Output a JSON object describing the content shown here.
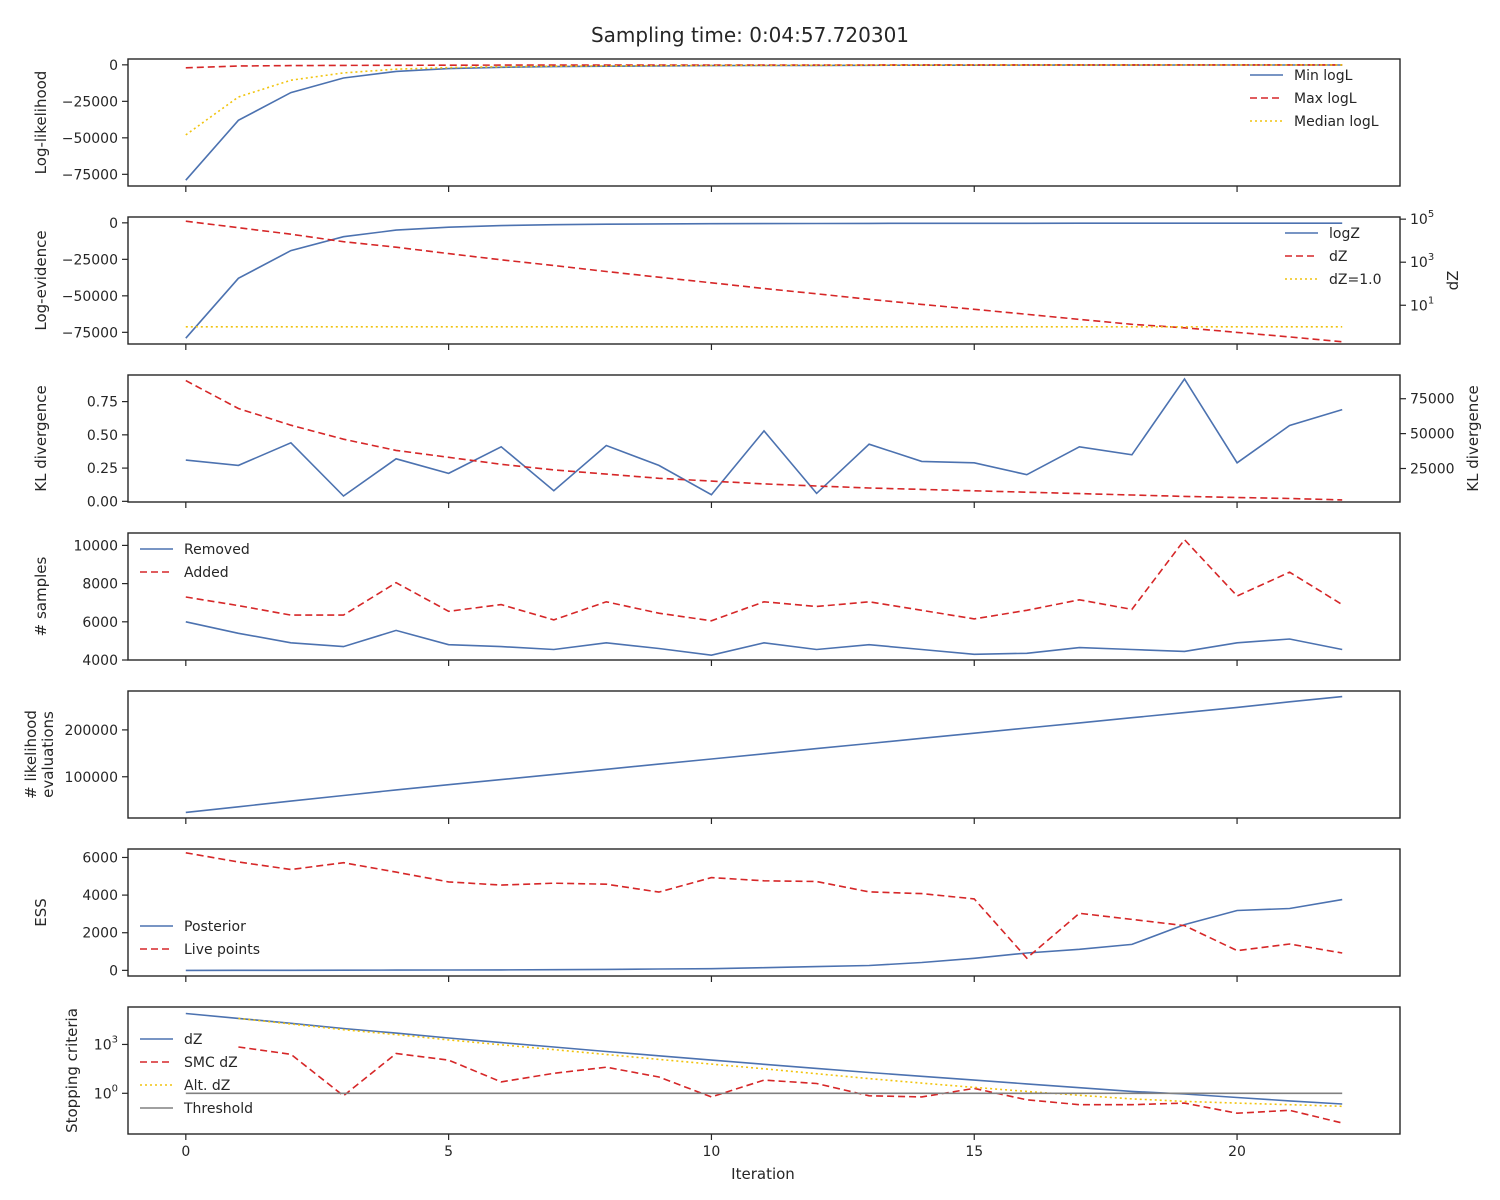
{
  "figure": {
    "title": "Sampling time: 0:04:57.720301",
    "xlabel": "Iteration"
  },
  "colors": {
    "blue": "#4c72b0",
    "red": "#d62728",
    "gold": "#f1c40f",
    "gray": "#808080",
    "axis": "#262626"
  },
  "chart_data": [
    {
      "type": "line",
      "ylabel": "Log-likelihood",
      "x": [
        0,
        1,
        2,
        3,
        4,
        5,
        6,
        7,
        8,
        9,
        10,
        11,
        12,
        13,
        14,
        15,
        16,
        17,
        18,
        19,
        20,
        21,
        22
      ],
      "series": [
        {
          "name": "Min logL",
          "style": "solid",
          "color": "blue",
          "values": [
            -79000,
            -38000,
            -19000,
            -9000,
            -4500,
            -2600,
            -1700,
            -1200,
            -900,
            -700,
            -550,
            -450,
            -380,
            -320,
            -280,
            -240,
            -210,
            -180,
            -160,
            -140,
            -120,
            -100,
            -80
          ]
        },
        {
          "name": "Max logL",
          "style": "dashed",
          "color": "red",
          "values": [
            -2000,
            -800,
            -500,
            -400,
            -300,
            -250,
            -200,
            -170,
            -150,
            -130,
            -110,
            -100,
            -90,
            -80,
            -70,
            -60,
            -55,
            -50,
            -45,
            -40,
            -35,
            -30,
            -25
          ]
        },
        {
          "name": "Median logL",
          "style": "dotted",
          "color": "gold",
          "values": [
            -48000,
            -22000,
            -10500,
            -5500,
            -3000,
            -1900,
            -1300,
            -950,
            -700,
            -550,
            -430,
            -360,
            -300,
            -260,
            -220,
            -190,
            -165,
            -145,
            -125,
            -110,
            -95,
            -80,
            -65
          ]
        }
      ],
      "yticks": [
        0,
        -25000,
        -50000,
        -75000
      ],
      "ylim": [
        -83000,
        4000
      ],
      "legend": "upper-right"
    },
    {
      "type": "line",
      "ylabel": "Log-evidence",
      "y2label": "dZ",
      "x": [
        0,
        1,
        2,
        3,
        4,
        5,
        6,
        7,
        8,
        9,
        10,
        11,
        12,
        13,
        14,
        15,
        16,
        17,
        18,
        19,
        20,
        21,
        22
      ],
      "series": [
        {
          "name": "logZ",
          "style": "solid",
          "color": "blue",
          "axis": "left",
          "values": [
            -79000,
            -38000,
            -19000,
            -9500,
            -5000,
            -3000,
            -1900,
            -1300,
            -950,
            -750,
            -600,
            -500,
            -430,
            -380,
            -340,
            -310,
            -285,
            -265,
            -250,
            -238,
            -228,
            -220,
            -214
          ]
        },
        {
          "name": "dZ",
          "style": "dashed",
          "color": "red",
          "axis": "right",
          "log": true,
          "values": [
            80000,
            40000,
            20000,
            9000,
            5000,
            2500,
            1300,
            700,
            370,
            200,
            110,
            60,
            34,
            19,
            11,
            6.5,
            3.8,
            2.2,
            1.3,
            0.9,
            0.55,
            0.34,
            0.2
          ]
        },
        {
          "name": "dZ=1.0",
          "style": "dotted",
          "color": "gold",
          "axis": "right",
          "log": true,
          "values": [
            1,
            1,
            1,
            1,
            1,
            1,
            1,
            1,
            1,
            1,
            1,
            1,
            1,
            1,
            1,
            1,
            1,
            1,
            1,
            1,
            1,
            1,
            1
          ]
        }
      ],
      "yticks": [
        0,
        -25000,
        -50000,
        -75000
      ],
      "ylim": [
        -83000,
        4000
      ],
      "y2ticks": [
        "10^5",
        "10^3",
        "10^1"
      ],
      "y2lim_log10": [
        -0.8,
        5.1
      ],
      "legend": "upper-right"
    },
    {
      "type": "line",
      "ylabel": "KL divergence",
      "y2label": "KL divergence",
      "x": [
        0,
        1,
        2,
        3,
        4,
        5,
        6,
        7,
        8,
        9,
        10,
        11,
        12,
        13,
        14,
        15,
        16,
        17,
        18,
        19,
        20,
        21,
        22
      ],
      "series": [
        {
          "name": "",
          "style": "solid",
          "color": "blue",
          "axis": "left",
          "values": [
            0.31,
            0.27,
            0.44,
            0.04,
            0.32,
            0.21,
            0.41,
            0.08,
            0.42,
            0.27,
            0.05,
            0.53,
            0.06,
            0.43,
            0.3,
            0.29,
            0.2,
            0.41,
            0.35,
            0.92,
            0.29,
            0.57,
            0.69
          ]
        },
        {
          "name": "",
          "style": "dashed",
          "color": "red",
          "axis": "right",
          "values": [
            88000,
            68000,
            56000,
            46000,
            38000,
            33000,
            28000,
            24000,
            21000,
            18000,
            16000,
            14000,
            12500,
            11000,
            10000,
            9000,
            8000,
            7000,
            6000,
            5000,
            4200,
            3500,
            2500
          ]
        }
      ],
      "yticks": [
        0.0,
        0.25,
        0.5,
        0.75
      ],
      "ylim": [
        -0.005,
        0.95
      ],
      "y2ticks": [
        25000,
        50000,
        75000
      ],
      "y2lim": [
        1000,
        92000
      ]
    },
    {
      "type": "line",
      "ylabel": "# samples",
      "x": [
        0,
        1,
        2,
        3,
        4,
        5,
        6,
        7,
        8,
        9,
        10,
        11,
        12,
        13,
        14,
        15,
        16,
        17,
        18,
        19,
        20,
        21,
        22
      ],
      "series": [
        {
          "name": "Removed",
          "style": "solid",
          "color": "blue",
          "values": [
            6000,
            5400,
            4900,
            4700,
            5550,
            4800,
            4700,
            4550,
            4900,
            4600,
            4250,
            4900,
            4550,
            4800,
            4550,
            4300,
            4350,
            4650,
            4550,
            4450,
            4900,
            5100,
            4550
          ]
        },
        {
          "name": "Added",
          "style": "dashed",
          "color": "red",
          "values": [
            7300,
            6850,
            6350,
            6350,
            8050,
            6550,
            6900,
            6100,
            7050,
            6450,
            6050,
            7050,
            6800,
            7050,
            6600,
            6150,
            6600,
            7150,
            6650,
            10300,
            7350,
            8600,
            6900
          ]
        }
      ],
      "yticks": [
        4000,
        6000,
        8000,
        10000
      ],
      "ylim": [
        4000,
        10650
      ],
      "legend": "upper-left"
    },
    {
      "type": "line",
      "ylabel": [
        "# likelihood",
        "evaluations"
      ],
      "x": [
        0,
        1,
        2,
        3,
        4,
        5,
        6,
        7,
        8,
        9,
        10,
        11,
        12,
        13,
        14,
        15,
        16,
        17,
        18,
        19,
        20,
        21,
        22
      ],
      "series": [
        {
          "name": "",
          "style": "solid",
          "color": "blue",
          "values": [
            24000,
            36000,
            48000,
            60000,
            72000,
            83000,
            94000,
            105000,
            116000,
            127000,
            138000,
            149000,
            160000,
            171000,
            182000,
            193000,
            204000,
            215000,
            226000,
            237000,
            248000,
            260000,
            271000
          ]
        }
      ],
      "yticks": [
        100000,
        200000
      ],
      "ylim": [
        12000,
        283000
      ]
    },
    {
      "type": "line",
      "ylabel": "ESS",
      "x": [
        0,
        1,
        2,
        3,
        4,
        5,
        6,
        7,
        8,
        9,
        10,
        11,
        12,
        13,
        14,
        15,
        16,
        17,
        18,
        19,
        20,
        21,
        22
      ],
      "series": [
        {
          "name": "Posterior",
          "style": "solid",
          "color": "blue",
          "values": [
            0,
            2,
            5,
            8,
            12,
            18,
            25,
            35,
            50,
            70,
            90,
            140,
            200,
            260,
            420,
            640,
            920,
            1120,
            1380,
            2430,
            3180,
            3290,
            3760
          ]
        },
        {
          "name": "Live points",
          "style": "dashed",
          "color": "red",
          "values": [
            6250,
            5760,
            5360,
            5720,
            5220,
            4700,
            4530,
            4630,
            4580,
            4160,
            4930,
            4760,
            4720,
            4170,
            4080,
            3800,
            650,
            3030,
            2710,
            2380,
            1050,
            1400,
            920
          ]
        }
      ],
      "yticks": [
        0,
        2000,
        4000,
        6000
      ],
      "ylim": [
        -300,
        6450
      ],
      "legend": "lower-left"
    },
    {
      "type": "line",
      "ylabel": "Stopping criteria",
      "x": [
        0,
        1,
        2,
        3,
        4,
        5,
        6,
        7,
        8,
        9,
        10,
        11,
        12,
        13,
        14,
        15,
        16,
        17,
        18,
        19,
        20,
        21,
        22
      ],
      "series": [
        {
          "name": "dZ",
          "style": "solid",
          "color": "blue",
          "log": true,
          "values": [
            80000,
            40000,
            20000,
            9500,
            5000,
            2500,
            1300,
            700,
            370,
            200,
            110,
            60,
            34,
            19,
            11,
            6.5,
            3.8,
            2.2,
            1.3,
            0.9,
            0.55,
            0.34,
            0.22
          ]
        },
        {
          "name": "SMC dZ",
          "style": "dashed",
          "color": "red",
          "log": true,
          "values": [
            null,
            700,
            250,
            0.7,
            280,
            110,
            5,
            17,
            40,
            10,
            0.6,
            6.5,
            4,
            0.7,
            0.6,
            2,
            0.4,
            0.2,
            0.2,
            0.25,
            0.06,
            0.09,
            0.015
          ]
        },
        {
          "name": "Alt. dZ",
          "style": "dotted",
          "color": "gold",
          "log": true,
          "values": [
            null,
            40000,
            18000,
            8000,
            4000,
            1900,
            950,
            480,
            240,
            120,
            62,
            32,
            16,
            8,
            4.2,
            2.3,
            1.3,
            0.75,
            0.45,
            0.32,
            0.25,
            0.2,
            0.16
          ]
        },
        {
          "name": "Threshold",
          "style": "solid",
          "color": "gray",
          "log": true,
          "values": [
            1,
            1,
            1,
            1,
            1,
            1,
            1,
            1,
            1,
            1,
            1,
            1,
            1,
            1,
            1,
            1,
            1,
            1,
            1,
            1,
            1,
            1,
            1
          ]
        }
      ],
      "yticks": [
        "10^3",
        "10^0"
      ],
      "ylim_log10": [
        -2.5,
        5.3
      ],
      "legend": "center-left"
    }
  ]
}
